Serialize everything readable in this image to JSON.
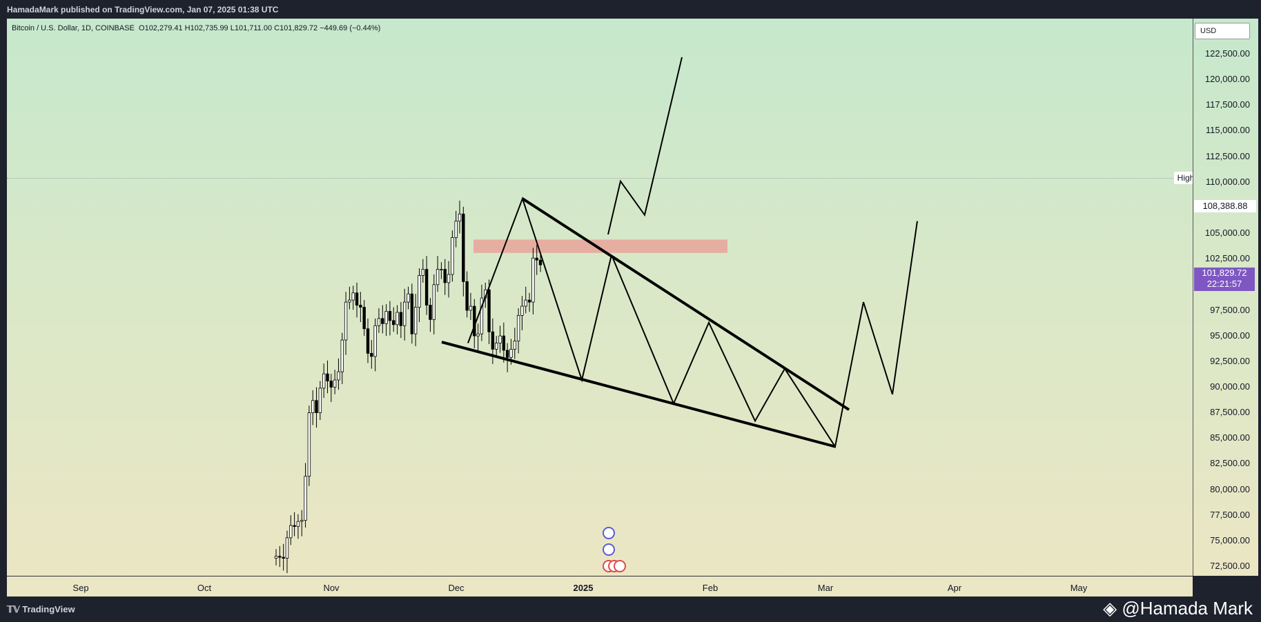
{
  "header": {
    "publisher_text": "HamadaMark published on TradingView.com, Jan 07, 2025 01:38 UTC"
  },
  "legend": {
    "symbol": "Bitcoin / U.S. Dollar, 1D, COINBASE",
    "ohlc": "O102,279.41 H102,735.99 L101,711.00 C101,829.72 −449.69 (−0.44%)"
  },
  "price_axis": {
    "unit": "USD",
    "high_tag": "High",
    "high_value": "108,388.88",
    "current_price": "101,829.72",
    "countdown": "22:21:57"
  },
  "footer": {
    "brand": "TradingView",
    "watermark": "@Hamada Mark"
  },
  "colors": {
    "up_candle": "#ffffff",
    "down_candle": "#000000",
    "resistance_zone": "#e9a39a",
    "current_price_bg": "#7e57c2",
    "drawing": "#000000"
  },
  "chart_data": {
    "type": "candlestick",
    "symbol": "Bitcoin / U.S. Dollar",
    "interval": "1D",
    "exchange": "COINBASE",
    "ylim": [
      72500,
      122500
    ],
    "y_ticks": [
      "72,500.00",
      "75,000.00",
      "77,500.00",
      "80,000.00",
      "82,500.00",
      "85,000.00",
      "87,500.00",
      "90,000.00",
      "92,500.00",
      "95,000.00",
      "97,500.00",
      "100,000.00",
      "102,500.00",
      "105,000.00",
      "107,500.00",
      "110,000.00",
      "112,500.00",
      "115,000.00",
      "117,500.00",
      "120,000.00",
      "122,500.00"
    ],
    "x_ticks": [
      "Sep",
      "Oct",
      "Nov",
      "Dec",
      "2025",
      "Feb",
      "Mar",
      "Apr",
      "May"
    ],
    "x_ticks_bold": [
      "2025"
    ],
    "candles_close": [
      73400,
      73300,
      73200,
      75200,
      76400,
      76300,
      76800,
      76900,
      81200,
      87400,
      88600,
      87400,
      89800,
      91200,
      90500,
      89900,
      90600,
      91400,
      94500,
      98200,
      98400,
      99100,
      97900,
      97700,
      95600,
      93200,
      92900,
      95900,
      96600,
      96100,
      97300,
      96400,
      96000,
      97200,
      95900,
      98200,
      99000,
      95100,
      97700,
      100800,
      101400,
      97900,
      96500,
      99900,
      101400,
      101400,
      100100,
      100900,
      104500,
      106100,
      106800,
      100200,
      97400,
      97800,
      94900,
      95100,
      98600,
      99400,
      95300,
      93600,
      94200,
      94900,
      93500,
      92800,
      93600,
      94400,
      96900,
      97800,
      98400,
      98200,
      102500,
      102300,
      101830
    ],
    "ohlc_last": {
      "open": 102279.41,
      "high": 102735.99,
      "low": 101711.0,
      "close": 101829.72,
      "change": -449.69,
      "change_pct": -0.44
    },
    "all_time_high": 108388.88,
    "resistance_zone": [
      103000,
      104300
    ],
    "falling_wedge": {
      "upper_line": [
        [
          108300,
          "2024-12-17"
        ],
        [
          87700,
          "2025-03-09"
        ]
      ],
      "lower_line": [
        [
          94300,
          "2024-11-26"
        ],
        [
          84100,
          "2025-03-02"
        ]
      ]
    },
    "projection_bullish": [
      104800,
      110000,
      106700,
      122100
    ],
    "projection_bearish": [
      102800,
      88300,
      96200,
      86600,
      91700,
      84100,
      98200,
      89200,
      106100
    ]
  }
}
